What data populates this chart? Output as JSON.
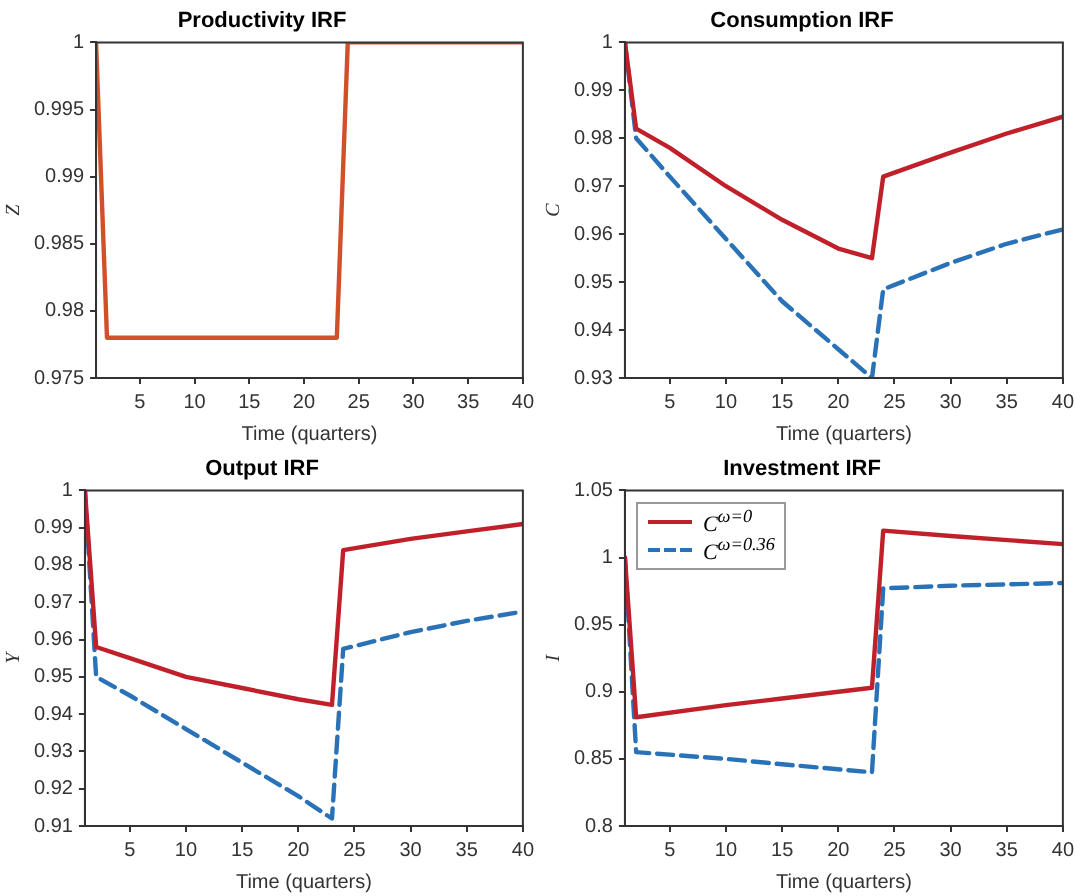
{
  "chart_data": [
    {
      "type": "line",
      "title": "Productivity IRF",
      "xlabel": "Time (quarters)",
      "ylabel": "Z",
      "xlim": [
        1,
        40
      ],
      "xticks": [
        5,
        10,
        15,
        20,
        25,
        30,
        35,
        40
      ],
      "ylim": [
        0.975,
        1
      ],
      "yticks": [
        0.975,
        0.98,
        0.985,
        0.99,
        0.995,
        1
      ],
      "grid": false,
      "legend": false,
      "series": [
        {
          "color": "#d0502a",
          "line_style": "solid",
          "x": [
            1,
            2,
            23,
            24,
            40
          ],
          "values": [
            1,
            0.978,
            0.978,
            1,
            1
          ]
        }
      ]
    },
    {
      "type": "line",
      "title": "Consumption IRF",
      "xlabel": "Time (quarters)",
      "ylabel": "C",
      "xlim": [
        1,
        40
      ],
      "xticks": [
        5,
        10,
        15,
        20,
        25,
        30,
        35,
        40
      ],
      "ylim": [
        0.93,
        1
      ],
      "yticks": [
        0.93,
        0.94,
        0.95,
        0.96,
        0.97,
        0.98,
        0.99,
        1
      ],
      "grid": false,
      "legend": false,
      "series": [
        {
          "color": "#c0202a",
          "line_style": "solid",
          "x": [
            1,
            2,
            5,
            10,
            15,
            20,
            23,
            24,
            30,
            35,
            40
          ],
          "values": [
            1,
            0.982,
            0.978,
            0.97,
            0.963,
            0.957,
            0.955,
            0.972,
            0.977,
            0.981,
            0.9845
          ]
        },
        {
          "color": "#2a72b8",
          "line_style": "dashed",
          "x": [
            1,
            2,
            5,
            10,
            15,
            20,
            23,
            24,
            30,
            35,
            40
          ],
          "values": [
            1,
            0.98,
            0.972,
            0.959,
            0.946,
            0.936,
            0.93,
            0.9485,
            0.954,
            0.958,
            0.961
          ]
        }
      ]
    },
    {
      "type": "line",
      "title": "Output IRF",
      "xlabel": "Time (quarters)",
      "ylabel": "Y",
      "xlim": [
        1,
        40
      ],
      "xticks": [
        5,
        10,
        15,
        20,
        25,
        30,
        35,
        40
      ],
      "ylim": [
        0.91,
        1
      ],
      "yticks": [
        0.91,
        0.92,
        0.93,
        0.94,
        0.95,
        0.96,
        0.97,
        0.98,
        0.99,
        1
      ],
      "grid": false,
      "legend": false,
      "series": [
        {
          "color": "#c0202a",
          "line_style": "solid",
          "x": [
            1,
            2,
            5,
            10,
            15,
            20,
            23,
            24,
            30,
            35,
            40
          ],
          "values": [
            1,
            0.958,
            0.955,
            0.95,
            0.947,
            0.944,
            0.9425,
            0.984,
            0.987,
            0.989,
            0.991
          ]
        },
        {
          "color": "#2a72b8",
          "line_style": "dashed",
          "x": [
            1,
            2,
            5,
            10,
            15,
            20,
            23,
            24,
            30,
            35,
            40
          ],
          "values": [
            1,
            0.95,
            0.945,
            0.936,
            0.927,
            0.918,
            0.912,
            0.9575,
            0.962,
            0.965,
            0.9675
          ]
        }
      ]
    },
    {
      "type": "line",
      "title": "Investment IRF",
      "xlabel": "Time (quarters)",
      "ylabel": "I",
      "xlim": [
        1,
        40
      ],
      "xticks": [
        5,
        10,
        15,
        20,
        25,
        30,
        35,
        40
      ],
      "ylim": [
        0.8,
        1.05
      ],
      "yticks": [
        0.8,
        0.85,
        0.9,
        0.95,
        1,
        1.05
      ],
      "grid": false,
      "legend": "top left",
      "series": [
        {
          "name": "C$^{ω=0}$",
          "color": "#c0202a",
          "line_style": "solid",
          "x": [
            1,
            2,
            10,
            15,
            23,
            24,
            30,
            40
          ],
          "values": [
            1,
            0.881,
            0.89,
            0.895,
            0.903,
            1.02,
            1.016,
            1.01
          ]
        },
        {
          "name": "C$^{ω=0.36}$",
          "color": "#2a72b8",
          "line_style": "dashed",
          "x": [
            1,
            2,
            10,
            15,
            23,
            24,
            30,
            40
          ],
          "values": [
            1,
            0.855,
            0.85,
            0.846,
            0.84,
            0.977,
            0.979,
            0.981
          ]
        }
      ]
    }
  ]
}
